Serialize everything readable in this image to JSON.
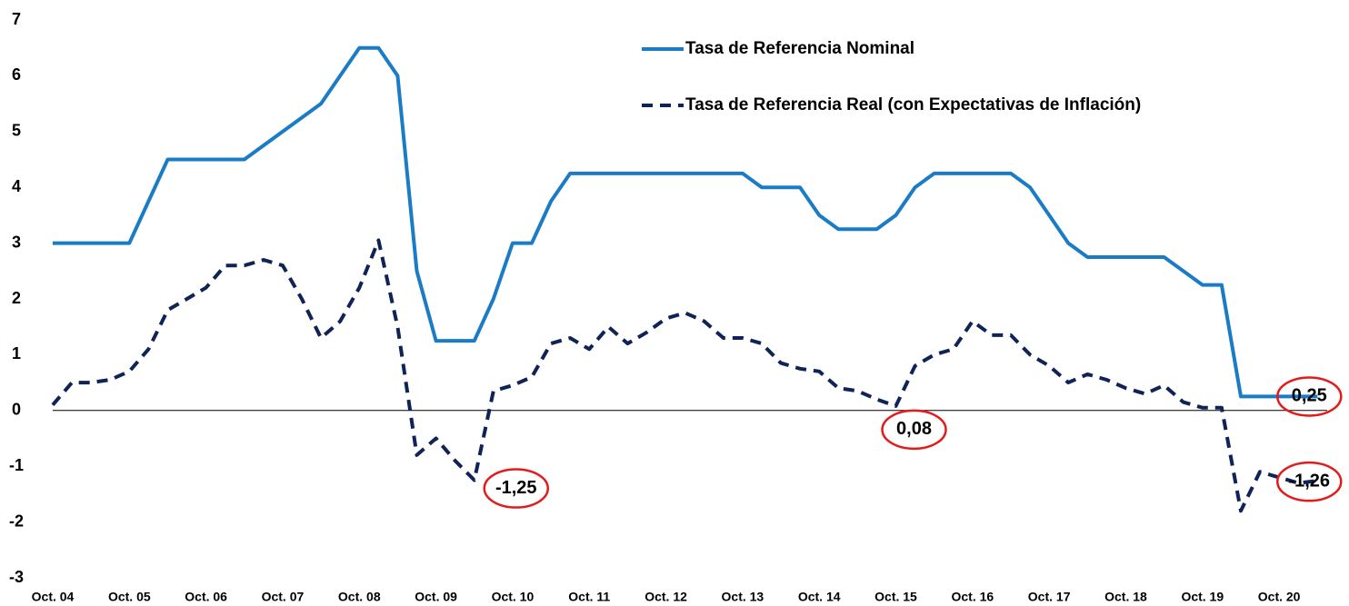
{
  "chart_data": {
    "type": "line",
    "categories": [
      "Oct. 04",
      null,
      null,
      null,
      "Oct. 05",
      null,
      null,
      null,
      "Oct. 06",
      null,
      null,
      null,
      "Oct. 07",
      null,
      null,
      null,
      "Oct. 08",
      null,
      null,
      null,
      "Oct. 09",
      null,
      null,
      null,
      "Oct. 10",
      null,
      null,
      null,
      "Oct. 11",
      null,
      null,
      null,
      "Oct. 12",
      null,
      null,
      null,
      "Oct. 13",
      null,
      null,
      null,
      "Oct. 14",
      null,
      null,
      null,
      "Oct. 15",
      null,
      null,
      null,
      "Oct. 16",
      null,
      null,
      null,
      "Oct. 17",
      null,
      null,
      null,
      "Oct. 18",
      null,
      null,
      null,
      "Oct. 19",
      null,
      null,
      null,
      "Oct. 20",
      null,
      null
    ],
    "series": [
      {
        "name": "Tasa de Referencia Nominal",
        "color": "#1b7cc6",
        "dashed": false,
        "values": [
          3,
          3,
          3,
          3,
          3,
          3.75,
          4.5,
          4.5,
          4.5,
          4.5,
          4.5,
          4.75,
          5,
          5.25,
          5.5,
          6,
          6.5,
          6.5,
          6,
          2.5,
          1.25,
          1.25,
          1.25,
          2,
          3,
          3,
          3.75,
          4.25,
          4.25,
          4.25,
          4.25,
          4.25,
          4.25,
          4.25,
          4.25,
          4.25,
          4.25,
          4,
          4,
          4,
          3.5,
          3.25,
          3.25,
          3.25,
          3.5,
          4,
          4.25,
          4.25,
          4.25,
          4.25,
          4.25,
          4,
          3.5,
          3,
          2.75,
          2.75,
          2.75,
          2.75,
          2.75,
          2.5,
          2.25,
          2.25,
          0.25,
          0.25,
          0.25,
          0.25,
          0.25
        ]
      },
      {
        "name": "Tasa de Referencia Real (con Expectativas de Inflación)",
        "color": "#0f2357",
        "dashed": true,
        "values": [
          0.1,
          0.5,
          0.5,
          0.55,
          0.7,
          1.1,
          1.8,
          2.0,
          2.2,
          2.6,
          2.6,
          2.7,
          2.6,
          2.0,
          1.3,
          1.6,
          2.2,
          3.05,
          1.5,
          -0.8,
          -0.5,
          -0.9,
          -1.25,
          0.35,
          0.45,
          0.6,
          1.2,
          1.3,
          1.1,
          1.5,
          1.2,
          1.4,
          1.65,
          1.75,
          1.6,
          1.3,
          1.3,
          1.2,
          0.85,
          0.75,
          0.7,
          0.4,
          0.35,
          0.2,
          0.08,
          0.8,
          1.0,
          1.1,
          1.6,
          1.35,
          1.35,
          1.0,
          0.8,
          0.5,
          0.65,
          0.55,
          0.4,
          0.3,
          0.45,
          0.15,
          0.05,
          0.05,
          -1.8,
          -1.1,
          -1.2,
          -1.3,
          -1.26
        ]
      }
    ],
    "ylim": [
      -3,
      7
    ],
    "yticks": [
      -3,
      -2,
      -1,
      0,
      1,
      2,
      3,
      4,
      5,
      6,
      7
    ],
    "grid": false,
    "legend": "top-right",
    "annotations": [
      {
        "text": "-1,25",
        "series": 1,
        "point": 22
      },
      {
        "text": "0,08",
        "series": 1,
        "point": 44
      },
      {
        "text": "0,25",
        "series": 0,
        "point": 66
      },
      {
        "text": "-1,26",
        "series": 1,
        "point": 66
      }
    ]
  }
}
